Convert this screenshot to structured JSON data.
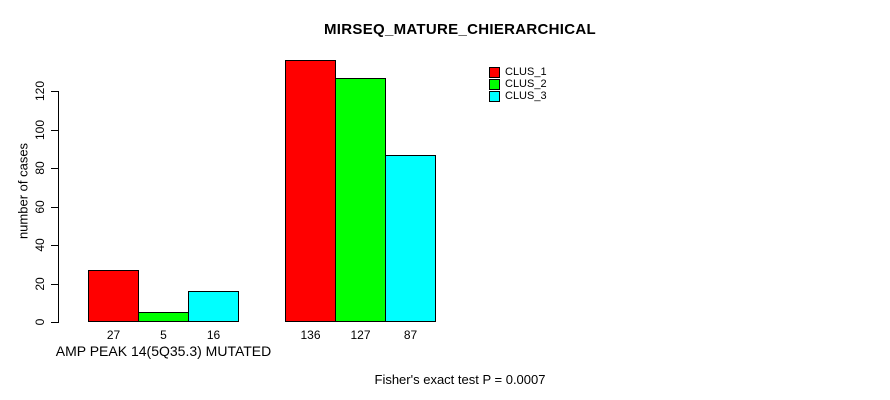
{
  "chart_data": {
    "type": "bar",
    "title": "MIRSEQ_MATURE_CHIERARCHICAL",
    "ylabel": "number of cases",
    "xlabel": "",
    "ylim": [
      0,
      120
    ],
    "yticks": [
      0,
      20,
      40,
      60,
      80,
      100,
      120
    ],
    "grid": false,
    "legend_position": "top-right-inside",
    "categories": [
      "AMP PEAK 14(5Q35.3) MUTATED",
      ""
    ],
    "series": [
      {
        "name": "CLUS_1",
        "color": "#ff0000",
        "values": [
          27,
          136
        ]
      },
      {
        "name": "CLUS_2",
        "color": "#00ff00",
        "values": [
          5,
          127
        ]
      },
      {
        "name": "CLUS_3",
        "color": "#00ffff",
        "values": [
          16,
          87
        ]
      }
    ],
    "bar_value_labels": [
      [
        27,
        5,
        16
      ],
      [
        136,
        127,
        87
      ]
    ],
    "footnote": "Fisher's exact test P = 0.0007",
    "colors": {
      "bar_border": "#000000",
      "background": "#ffffff",
      "text": "#000000"
    }
  }
}
